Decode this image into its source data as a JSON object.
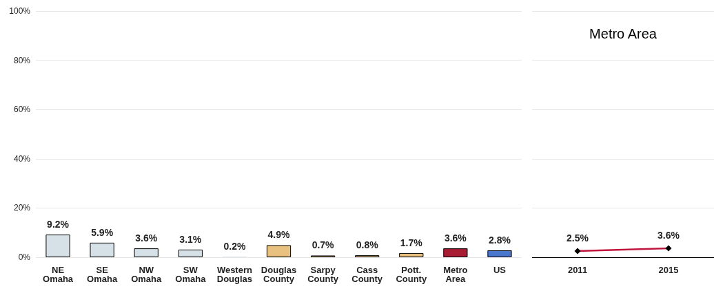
{
  "chart_data": [
    {
      "type": "bar",
      "categories": [
        "NE Omaha",
        "SE Omaha",
        "NW Omaha",
        "SW Omaha",
        "Western Douglas",
        "Douglas County",
        "Sarpy County",
        "Cass County",
        "Pott. County",
        "Metro Area",
        "US"
      ],
      "values": [
        9.2,
        5.9,
        3.6,
        3.1,
        0.2,
        4.9,
        0.7,
        0.8,
        1.7,
        3.6,
        2.8
      ],
      "colors": [
        "#d5e1e6",
        "#d5e1e6",
        "#d5e1e6",
        "#d5e1e6",
        "#d5e1e6",
        "#e8c07f",
        "#e8c07f",
        "#e8c07f",
        "#e8c07f",
        "#a81c34",
        "#4a77cc"
      ],
      "value_labels": [
        "9.2%",
        "5.9%",
        "3.6%",
        "3.1%",
        "0.2%",
        "4.9%",
        "0.7%",
        "0.8%",
        "1.7%",
        "3.6%",
        "2.8%"
      ],
      "ylim": [
        0,
        100
      ],
      "yticks": [
        {
          "value": 0,
          "label": "0%"
        },
        {
          "value": 20,
          "label": "20%"
        },
        {
          "value": 40,
          "label": "40%"
        },
        {
          "value": 60,
          "label": "60%"
        },
        {
          "value": 80,
          "label": "80%"
        },
        {
          "value": 100,
          "label": "100%"
        }
      ],
      "grid": "y"
    },
    {
      "type": "line",
      "title": "Metro Area",
      "categories": [
        "2011",
        "2015"
      ],
      "series": [
        {
          "color": "#c0143c",
          "values": [
            2.5,
            3.6
          ],
          "value_labels": [
            "2.5%",
            "3.6%"
          ]
        }
      ],
      "marker": "diamond",
      "line_style": "solid",
      "ylim": [
        0,
        100
      ],
      "yticks": [
        0,
        20,
        40,
        60,
        80,
        100
      ],
      "grid": "y",
      "tick_labels": "x"
    }
  ]
}
